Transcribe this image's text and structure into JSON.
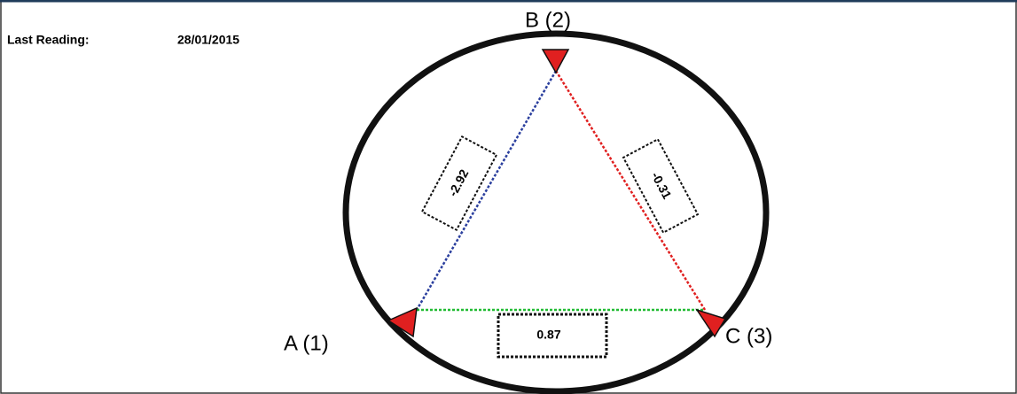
{
  "header": {
    "label": "Last Reading:",
    "date": "28/01/2015"
  },
  "nodes": [
    {
      "label": "A (1)"
    },
    {
      "label": "B (2)"
    },
    {
      "label": "C (3)"
    }
  ],
  "edges": [
    {
      "from": "A (1)",
      "to": "B (2)",
      "value": "-2.92"
    },
    {
      "from": "B (2)",
      "to": "C (3)",
      "value": "-0.31"
    },
    {
      "from": "A (1)",
      "to": "C (3)",
      "value": "0.87"
    }
  ]
}
